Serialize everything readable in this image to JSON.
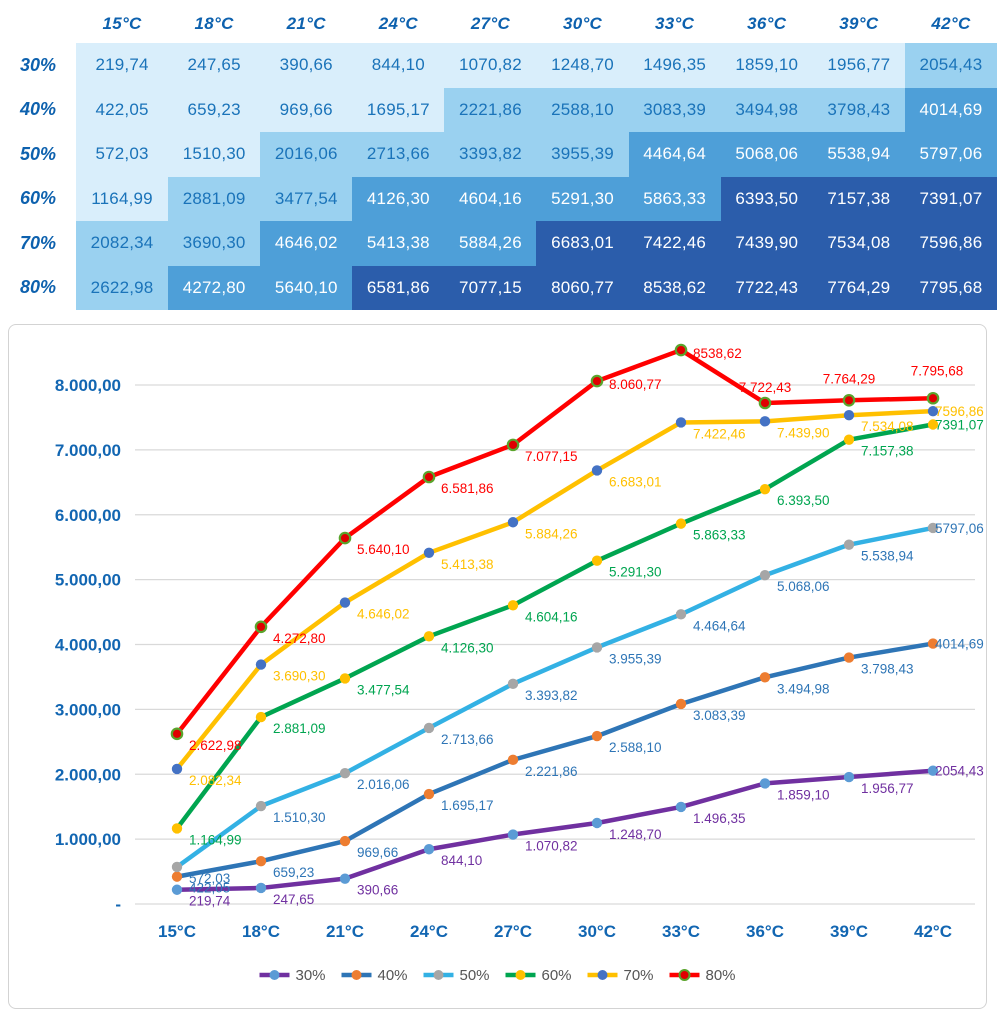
{
  "table": {
    "corner_label": "",
    "col_headers": [
      "15°C",
      "18°C",
      "21°C",
      "24°C",
      "27°C",
      "30°C",
      "33°C",
      "36°C",
      "39°C",
      "42°C"
    ],
    "rows": [
      {
        "label": "30%",
        "values": [
          "219,74",
          "247,65",
          "390,66",
          "844,10",
          "1070,82",
          "1248,70",
          "1496,35",
          "1859,10",
          "1956,77",
          "2054,43"
        ]
      },
      {
        "label": "40%",
        "values": [
          "422,05",
          "659,23",
          "969,66",
          "1695,17",
          "2221,86",
          "2588,10",
          "3083,39",
          "3494,98",
          "3798,43",
          "4014,69"
        ]
      },
      {
        "label": "50%",
        "values": [
          "572,03",
          "1510,30",
          "2016,06",
          "2713,66",
          "3393,82",
          "3955,39",
          "4464,64",
          "5068,06",
          "5538,94",
          "5797,06"
        ]
      },
      {
        "label": "60%",
        "values": [
          "1164,99",
          "2881,09",
          "3477,54",
          "4126,30",
          "4604,16",
          "5291,30",
          "5863,33",
          "6393,50",
          "7157,38",
          "7391,07"
        ]
      },
      {
        "label": "70%",
        "values": [
          "2082,34",
          "3690,30",
          "4646,02",
          "5413,38",
          "5884,26",
          "6683,01",
          "7422,46",
          "7439,90",
          "7534,08",
          "7596,86"
        ]
      },
      {
        "label": "80%",
        "values": [
          "2622,98",
          "4272,80",
          "5640,10",
          "6581,86",
          "7077,15",
          "8060,77",
          "8538,62",
          "7722,43",
          "7764,29",
          "7795,68"
        ]
      }
    ],
    "heatmap": {
      "band_thresholds": [
        2000,
        4000,
        6000
      ],
      "band_colors": [
        "#d9eefb",
        "#9ad1f0",
        "#4e9fd8",
        "#2b5dab"
      ],
      "text_on_light": "#1a73b9",
      "text_on_dark": "#ffffff",
      "header_text_color": "#0d61ae"
    }
  },
  "chart_data": {
    "type": "line",
    "categories": [
      "15°C",
      "18°C",
      "21°C",
      "24°C",
      "27°C",
      "30°C",
      "33°C",
      "36°C",
      "39°C",
      "42°C"
    ],
    "series": [
      {
        "name": "30%",
        "line_color": "#7030a0",
        "marker_color": "#5b9bd5",
        "marker_edge": "",
        "label_color": "#7030a0",
        "values": [
          219.74,
          247.65,
          390.66,
          844.1,
          1070.82,
          1248.7,
          1496.35,
          1859.1,
          1956.77,
          2054.43
        ],
        "labels": [
          "219,74",
          "247,65",
          "390,66",
          "844,10",
          "1.070,82",
          "1.248,70",
          "1.496,35",
          "1.859,10",
          "1.956,77",
          "2054,43"
        ]
      },
      {
        "name": "40%",
        "line_color": "#2e75b6",
        "marker_color": "#ed7d31",
        "marker_edge": "",
        "label_color": "#2e75b6",
        "values": [
          422.05,
          659.23,
          969.66,
          1695.17,
          2221.86,
          2588.1,
          3083.39,
          3494.98,
          3798.43,
          4014.69
        ],
        "labels": [
          "422,05",
          "659,23",
          "969,66",
          "1.695,17",
          "2.221,86",
          "2.588,10",
          "3.083,39",
          "3.494,98",
          "3.798,43",
          "4014,69"
        ]
      },
      {
        "name": "50%",
        "line_color": "#33b1e4",
        "marker_color": "#a6a6a6",
        "marker_edge": "",
        "label_color": "#2e75b6",
        "values": [
          572.03,
          1510.3,
          2016.06,
          2713.66,
          3393.82,
          3955.39,
          4464.64,
          5068.06,
          5538.94,
          5797.06
        ],
        "labels": [
          "572,03",
          "1.510,30",
          "2.016,06",
          "2.713,66",
          "3.393,82",
          "3.955,39",
          "4.464,64",
          "5.068,06",
          "5.538,94",
          "5797,06"
        ]
      },
      {
        "name": "60%",
        "line_color": "#00a550",
        "marker_color": "#ffc000",
        "marker_edge": "",
        "label_color": "#00a550",
        "values": [
          1164.99,
          2881.09,
          3477.54,
          4126.3,
          4604.16,
          5291.3,
          5863.33,
          6393.5,
          7157.38,
          7391.07
        ],
        "labels": [
          "1.164,99",
          "2.881,09",
          "3.477,54",
          "4.126,30",
          "4.604,16",
          "5.291,30",
          "5.863,33",
          "6.393,50",
          "7.157,38",
          "7391,07"
        ]
      },
      {
        "name": "70%",
        "line_color": "#ffc000",
        "marker_color": "#4472c4",
        "marker_edge": "",
        "label_color": "#ffc000",
        "values": [
          2082.34,
          3690.3,
          4646.02,
          5413.38,
          5884.26,
          6683.01,
          7422.46,
          7439.9,
          7534.08,
          7596.86
        ],
        "labels": [
          "2.082,34",
          "3.690,30",
          "4.646,02",
          "5.413,38",
          "5.884,26",
          "6.683,01",
          "7.422,46",
          "7.439,90",
          "7.534,08",
          "7596,86"
        ]
      },
      {
        "name": "80%",
        "line_color": "#ff0000",
        "marker_color": "#e00000",
        "marker_edge": "#5aa42c",
        "label_color": "#ff0000",
        "values": [
          2622.98,
          4272.8,
          5640.1,
          6581.86,
          7077.15,
          8060.77,
          8538.62,
          7722.43,
          7764.29,
          7795.68
        ],
        "labels": [
          "2.622,98",
          "4.272,80",
          "5.640,10",
          "6.581,86",
          "7.077,15",
          "8.060,77",
          "8538,62",
          "7.722,43",
          "7.764,29",
          "7.795,68"
        ]
      }
    ],
    "y_ticks": [
      {
        "value": 0,
        "label": "-"
      },
      {
        "value": 1000,
        "label": "1.000,00"
      },
      {
        "value": 2000,
        "label": "2.000,00"
      },
      {
        "value": 3000,
        "label": "3.000,00"
      },
      {
        "value": 4000,
        "label": "4.000,00"
      },
      {
        "value": 5000,
        "label": "5.000,00"
      },
      {
        "value": 6000,
        "label": "6.000,00"
      },
      {
        "value": 7000,
        "label": "7.000,00"
      },
      {
        "value": 8000,
        "label": "8.000,00"
      }
    ],
    "ylim": [
      0,
      8700
    ],
    "grid": true,
    "legend_position": "bottom",
    "legend_entries": [
      "30%",
      "40%",
      "50%",
      "60%",
      "70%",
      "80%"
    ],
    "axis_label_color": "#1266b2",
    "legend_text_color": "#555555",
    "gridline_color": "#d9d9d9",
    "title": "",
    "xlabel": "",
    "ylabel": ""
  }
}
